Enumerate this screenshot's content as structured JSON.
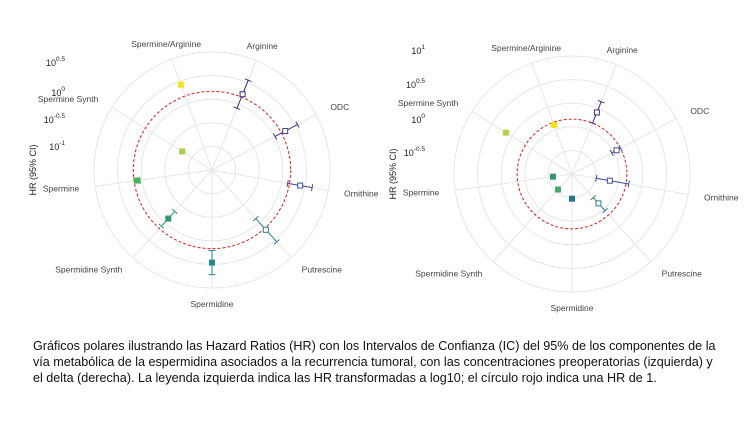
{
  "chart_data": [
    {
      "type": "polar-errorbar",
      "panel": "left",
      "ylabel": "HR (95% CI)",
      "rticks": [
        {
          "base": "10",
          "exp": "0.5"
        },
        {
          "base": "10",
          "exp": "0"
        },
        {
          "base": "10",
          "exp": "-0.5"
        },
        {
          "base": "10",
          "exp": "-1"
        }
      ],
      "reference_circle_log10": 0,
      "reference_color": "#e02020",
      "categories": [
        "Arginine",
        "ODC",
        "Ornithine",
        "Putrescine",
        "Spermidine",
        "Spermidine Synth",
        "Spermine",
        "Spermine Synth",
        "Spermine/Arginine"
      ],
      "log10_hr": [
        0.05,
        0.07,
        0.18,
        0.03,
        0.23,
        -0.22,
        -0.05,
        -0.72,
        0.2
      ],
      "log10_ci_low": [
        -0.2,
        -0.12,
        -0.03,
        -0.22,
        0.03,
        -0.38,
        -0.1,
        -0.72,
        0.2
      ],
      "log10_ci_high": [
        0.3,
        0.3,
        0.38,
        0.3,
        0.43,
        -0.05,
        0.0,
        -0.72,
        0.2
      ],
      "colors": [
        "#3b2a7e",
        "#3b3e8e",
        "#3d4a93",
        "#2f7e8c",
        "#27868d",
        "#2e9a72",
        "#4bb25a",
        "#a9d14a",
        "#f1e51c"
      ],
      "filled": [
        false,
        false,
        false,
        false,
        true,
        true,
        true,
        true,
        true
      ]
    },
    {
      "type": "polar-errorbar",
      "panel": "right",
      "ylabel": "HR (95% CI)",
      "rticks": [
        {
          "base": "10",
          "exp": "1"
        },
        {
          "base": "10",
          "exp": "0.5"
        },
        {
          "base": "10",
          "exp": "0"
        },
        {
          "base": "10",
          "exp": "-0.5"
        }
      ],
      "reference_circle_log10": 0,
      "reference_color": "#e02020",
      "categories": [
        "Arginine",
        "ODC",
        "Ornithine",
        "Putrescine",
        "Spermidine",
        "Spermidine Synth",
        "Spermine",
        "Spermine Synth",
        "Spermine/Arginine"
      ],
      "log10_hr": [
        0.21,
        -0.08,
        -0.3,
        -0.28,
        -0.55,
        -0.62,
        -0.65,
        0.42,
        -0.05
      ],
      "log10_ci_low": [
        0.0,
        -0.18,
        -0.55,
        -0.42,
        -0.55,
        -0.62,
        -0.65,
        0.42,
        -0.05
      ],
      "log10_ci_high": [
        0.42,
        0.0,
        0.05,
        -0.1,
        -0.55,
        -0.62,
        -0.65,
        0.42,
        -0.05
      ],
      "colors": [
        "#482a7a",
        "#43508a",
        "#3f4d8f",
        "#2e7f8c",
        "#24778b",
        "#4aa76b",
        "#2e9b6f",
        "#b5d342",
        "#f3e51a"
      ],
      "filled": [
        false,
        false,
        false,
        false,
        true,
        true,
        true,
        true,
        true
      ]
    }
  ],
  "caption": "Gráficos polares ilustrando las Hazard Ratios (HR) con los Intervalos de Confianza (IC) del 95% de los componentes de la vía metabólica de la espermidina asociados a la recurrencia tumoral, con las concentraciones preoperatorias (izquierda) y el delta (derecha). La leyenda izquierda indica las HR transformadas a log10; el círculo rojo indica una HR de 1."
}
